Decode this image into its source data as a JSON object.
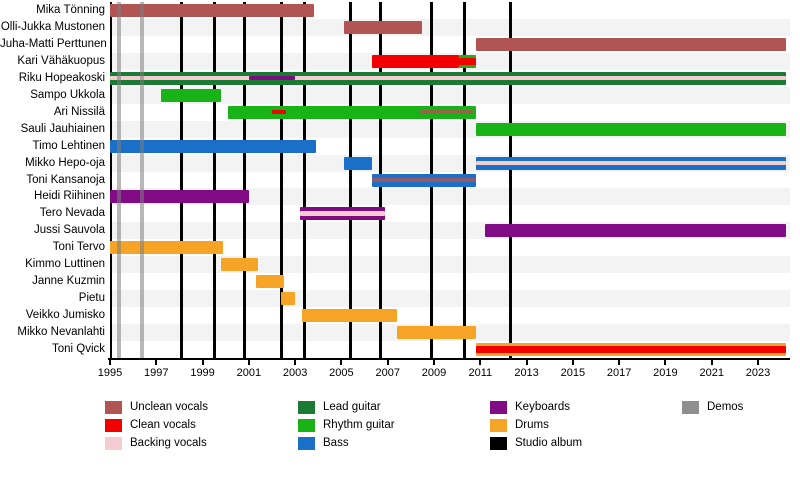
{
  "chart_data": {
    "type": "timeline",
    "title": "",
    "x_axis": {
      "min": 1995,
      "max": 2024.2,
      "tick_years": [
        1995,
        1997,
        1999,
        2001,
        2003,
        2005,
        2007,
        2009,
        2011,
        2013,
        2015,
        2017,
        2019,
        2021,
        2023
      ]
    },
    "roles": {
      "unclean": {
        "label": "Unclean vocals",
        "color": "#b05454"
      },
      "clean": {
        "label": "Clean vocals",
        "color": "#f20000"
      },
      "backing": {
        "label": "Backing vocals",
        "color": "#f5ccd2"
      },
      "lead": {
        "label": "Lead guitar",
        "color": "#1b7a34"
      },
      "rhythm": {
        "label": "Rhythm guitar",
        "color": "#17b317"
      },
      "bass": {
        "label": "Bass",
        "color": "#1a70c8"
      },
      "keys": {
        "label": "Keyboards",
        "color": "#800b85"
      },
      "drums": {
        "label": "Drums",
        "color": "#f6a426"
      },
      "album": {
        "label": "Studio album",
        "color": "#000000"
      },
      "demo": {
        "label": "Demos",
        "color": "#8f8f8f"
      }
    },
    "members": [
      {
        "name": "Mika Tönning",
        "bars": [
          {
            "role": "unclean",
            "start": 1995.0,
            "end": 2003.8,
            "band": "full"
          }
        ]
      },
      {
        "name": "Olli-Jukka Mustonen",
        "bars": [
          {
            "role": "unclean",
            "start": 2005.1,
            "end": 2008.5,
            "band": "full"
          }
        ]
      },
      {
        "name": "Juha-Matti Perttunen",
        "bars": [
          {
            "role": "unclean",
            "start": 2010.8,
            "end": 2024.2,
            "band": "full"
          }
        ]
      },
      {
        "name": "Kari Vähäkuopus",
        "bars": [
          {
            "role": "rhythm",
            "start": 2010.1,
            "end": 2010.8,
            "band": "full"
          },
          {
            "role": "clean",
            "start": 2006.3,
            "end": 2010.1,
            "band": "full"
          },
          {
            "role": "clean",
            "start": 2010.1,
            "end": 2010.8,
            "band": "mid7"
          }
        ]
      },
      {
        "name": "Riku Hopeakoski",
        "bars": [
          {
            "role": "lead",
            "start": 1995.0,
            "end": 2024.2,
            "band": "full"
          },
          {
            "role": "backing",
            "start": 1995.0,
            "end": 2024.2,
            "band": "mid"
          },
          {
            "role": "keys",
            "start": 2001.0,
            "end": 2003.0,
            "band": "mid"
          }
        ]
      },
      {
        "name": "Sampo Ukkola",
        "bars": [
          {
            "role": "rhythm",
            "start": 1997.2,
            "end": 1999.8,
            "band": "full"
          }
        ]
      },
      {
        "name": "Ari Nissilä",
        "bars": [
          {
            "role": "rhythm",
            "start": 2000.1,
            "end": 2010.8,
            "band": "full"
          },
          {
            "role": "clean",
            "start": 2002.0,
            "end": 2002.6,
            "band": "mid"
          },
          {
            "role": "unclean",
            "start": 2008.4,
            "end": 2010.7,
            "band": "thin"
          }
        ]
      },
      {
        "name": "Sauli Jauhiainen",
        "bars": [
          {
            "role": "rhythm",
            "start": 2010.8,
            "end": 2024.2,
            "band": "full"
          }
        ]
      },
      {
        "name": "Timo Lehtinen",
        "bars": [
          {
            "role": "bass",
            "start": 1995.0,
            "end": 2003.9,
            "band": "full"
          }
        ]
      },
      {
        "name": "Mikko Hepo-oja",
        "bars": [
          {
            "role": "bass",
            "start": 2005.1,
            "end": 2006.3,
            "band": "full"
          },
          {
            "role": "bass",
            "start": 2010.8,
            "end": 2024.2,
            "band": "full"
          },
          {
            "role": "backing",
            "start": 2010.8,
            "end": 2024.2,
            "band": "mid"
          }
        ]
      },
      {
        "name": "Toni Kansanoja",
        "bars": [
          {
            "role": "bass",
            "start": 2006.3,
            "end": 2010.8,
            "band": "full"
          },
          {
            "role": "unclean",
            "start": 2006.3,
            "end": 2010.8,
            "band": "thin"
          }
        ]
      },
      {
        "name": "Heidi Riihinen",
        "bars": [
          {
            "role": "keys",
            "start": 1995.0,
            "end": 2001.0,
            "band": "full"
          }
        ]
      },
      {
        "name": "Tero Nevada",
        "bars": [
          {
            "role": "keys",
            "start": 2003.2,
            "end": 2006.9,
            "band": "full"
          },
          {
            "role": "backing",
            "start": 2003.2,
            "end": 2006.9,
            "band": "mid"
          }
        ]
      },
      {
        "name": "Jussi Sauvola",
        "bars": [
          {
            "role": "keys",
            "start": 2011.2,
            "end": 2024.2,
            "band": "full"
          }
        ]
      },
      {
        "name": "Toni Tervo",
        "bars": [
          {
            "role": "drums",
            "start": 1995.0,
            "end": 1999.9,
            "band": "full"
          }
        ]
      },
      {
        "name": "Kimmo Luttinen",
        "bars": [
          {
            "role": "drums",
            "start": 1999.8,
            "end": 2001.4,
            "band": "full"
          }
        ]
      },
      {
        "name": "Janne Kuzmin",
        "bars": [
          {
            "role": "drums",
            "start": 2001.3,
            "end": 2002.5,
            "band": "full"
          }
        ]
      },
      {
        "name": "Pietu",
        "bars": [
          {
            "role": "drums",
            "start": 2002.4,
            "end": 2003.0,
            "band": "full"
          }
        ]
      },
      {
        "name": "Veikko Jumisko",
        "bars": [
          {
            "role": "drums",
            "start": 2003.3,
            "end": 2007.4,
            "band": "full"
          }
        ]
      },
      {
        "name": "Mikko Nevanlahti",
        "bars": [
          {
            "role": "drums",
            "start": 2007.4,
            "end": 2010.8,
            "band": "full"
          }
        ]
      },
      {
        "name": "Toni Qvick",
        "bars": [
          {
            "role": "drums",
            "start": 2010.8,
            "end": 2024.2,
            "band": "full"
          },
          {
            "role": "clean",
            "start": 2010.8,
            "end": 2024.2,
            "band": "mid7"
          }
        ]
      }
    ],
    "events": {
      "studio_albums": [
        1998.1,
        1999.5,
        2000.8,
        2002.4,
        2003.4,
        2005.4,
        2006.7,
        2008.9,
        2010.3,
        2012.3
      ],
      "demos": [
        1995.4,
        1996.4
      ]
    },
    "legend": {
      "columns": [
        [
          "unclean",
          "clean",
          "backing"
        ],
        [
          "lead",
          "rhythm",
          "bass"
        ],
        [
          "keys",
          "drums",
          "album"
        ],
        [
          "demo"
        ]
      ]
    }
  }
}
